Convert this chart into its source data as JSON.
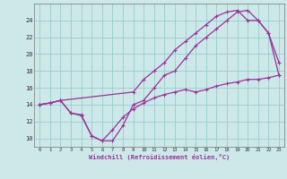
{
  "xlabel": "Windchill (Refroidissement éolien,°C)",
  "bg_color": "#cce8e8",
  "grid_color": "#99cccc",
  "line_color": "#993399",
  "xlim": [
    -0.5,
    23.5
  ],
  "ylim": [
    9.0,
    26.0
  ],
  "xticks": [
    0,
    1,
    2,
    3,
    4,
    5,
    6,
    7,
    8,
    9,
    10,
    11,
    12,
    13,
    14,
    15,
    16,
    17,
    18,
    19,
    20,
    21,
    22,
    23
  ],
  "yticks": [
    10,
    12,
    14,
    16,
    18,
    20,
    22,
    24
  ],
  "line1_x": [
    0,
    1,
    2,
    3,
    4,
    5,
    6,
    7,
    8,
    9,
    10,
    11,
    12,
    13,
    14,
    15,
    16,
    17,
    18,
    19,
    20,
    21,
    22,
    23
  ],
  "line1_y": [
    14.0,
    14.2,
    14.5,
    13.0,
    12.7,
    10.3,
    9.7,
    9.7,
    11.5,
    14.0,
    14.5,
    16.0,
    17.5,
    18.0,
    19.5,
    21.0,
    22.0,
    23.0,
    24.0,
    25.0,
    25.2,
    24.0,
    22.5,
    19.0
  ],
  "line1_markers": [
    0,
    1,
    2,
    3,
    4,
    5,
    6,
    7,
    8,
    9,
    10,
    11,
    12,
    13,
    14,
    15,
    16,
    17,
    18,
    19,
    20,
    21,
    22,
    23
  ],
  "line2_x": [
    0,
    1,
    2,
    9,
    10,
    11,
    12,
    13,
    14,
    15,
    16,
    17,
    18,
    19,
    20,
    21,
    22,
    23
  ],
  "line2_y": [
    14.0,
    14.2,
    14.5,
    15.5,
    17.0,
    18.0,
    19.0,
    20.5,
    21.5,
    22.5,
    23.5,
    24.5,
    25.0,
    25.2,
    24.0,
    24.0,
    22.5,
    17.5
  ],
  "line3_x": [
    0,
    1,
    2,
    3,
    4,
    5,
    6,
    7,
    8,
    9,
    10,
    11,
    12,
    13,
    14,
    15,
    16,
    17,
    18,
    19,
    20,
    21,
    22,
    23
  ],
  "line3_y": [
    14.0,
    14.2,
    14.5,
    13.0,
    12.8,
    10.3,
    9.7,
    11.0,
    12.5,
    13.5,
    14.2,
    14.8,
    15.2,
    15.5,
    15.8,
    15.5,
    15.8,
    16.2,
    16.5,
    16.7,
    17.0,
    17.0,
    17.2,
    17.5
  ],
  "figsize": [
    3.2,
    2.0
  ],
  "dpi": 100
}
